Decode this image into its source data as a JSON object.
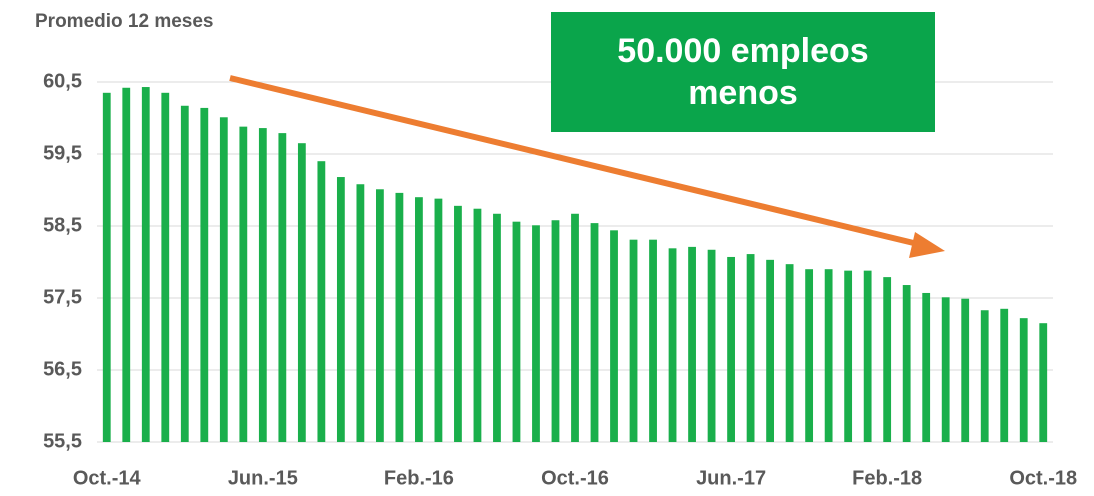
{
  "chart_data": {
    "type": "bar",
    "title": "Promedio 12 meses",
    "annotation": "50.000 empleos menos",
    "categories": [
      "Oct.-14",
      null,
      null,
      null,
      null,
      null,
      null,
      null,
      "Jun.-15",
      null,
      null,
      null,
      null,
      null,
      null,
      null,
      "Feb.-16",
      null,
      null,
      null,
      null,
      null,
      null,
      null,
      "Oct.-16",
      null,
      null,
      null,
      null,
      null,
      null,
      null,
      "Jun.-17",
      null,
      null,
      null,
      null,
      null,
      null,
      null,
      "Feb.-18",
      null,
      null,
      null,
      null,
      null,
      null,
      null,
      "Oct.-18"
    ],
    "values": [
      60.35,
      60.42,
      60.43,
      60.35,
      60.17,
      60.14,
      60.01,
      59.88,
      59.86,
      59.79,
      59.65,
      59.4,
      59.18,
      59.08,
      59.01,
      58.96,
      58.9,
      58.88,
      58.78,
      58.74,
      58.67,
      58.56,
      58.51,
      58.58,
      58.67,
      58.54,
      58.44,
      58.31,
      58.31,
      58.19,
      58.21,
      58.17,
      58.07,
      58.11,
      58.03,
      57.97,
      57.9,
      57.9,
      57.88,
      57.88,
      57.79,
      57.68,
      57.57,
      57.51,
      57.49,
      57.33,
      57.35,
      57.22,
      57.15
    ],
    "color": "#1aaf4b",
    "ylim": [
      55.5,
      60.5
    ],
    "yticks": [
      {
        "value": 55.5,
        "label": "55,5"
      },
      {
        "value": 56.5,
        "label": "56,5"
      },
      {
        "value": 57.5,
        "label": "57,5"
      },
      {
        "value": 58.5,
        "label": "58,5"
      },
      {
        "value": 59.5,
        "label": "59,5"
      },
      {
        "value": 60.5,
        "label": "60,5"
      }
    ],
    "grid": true
  }
}
